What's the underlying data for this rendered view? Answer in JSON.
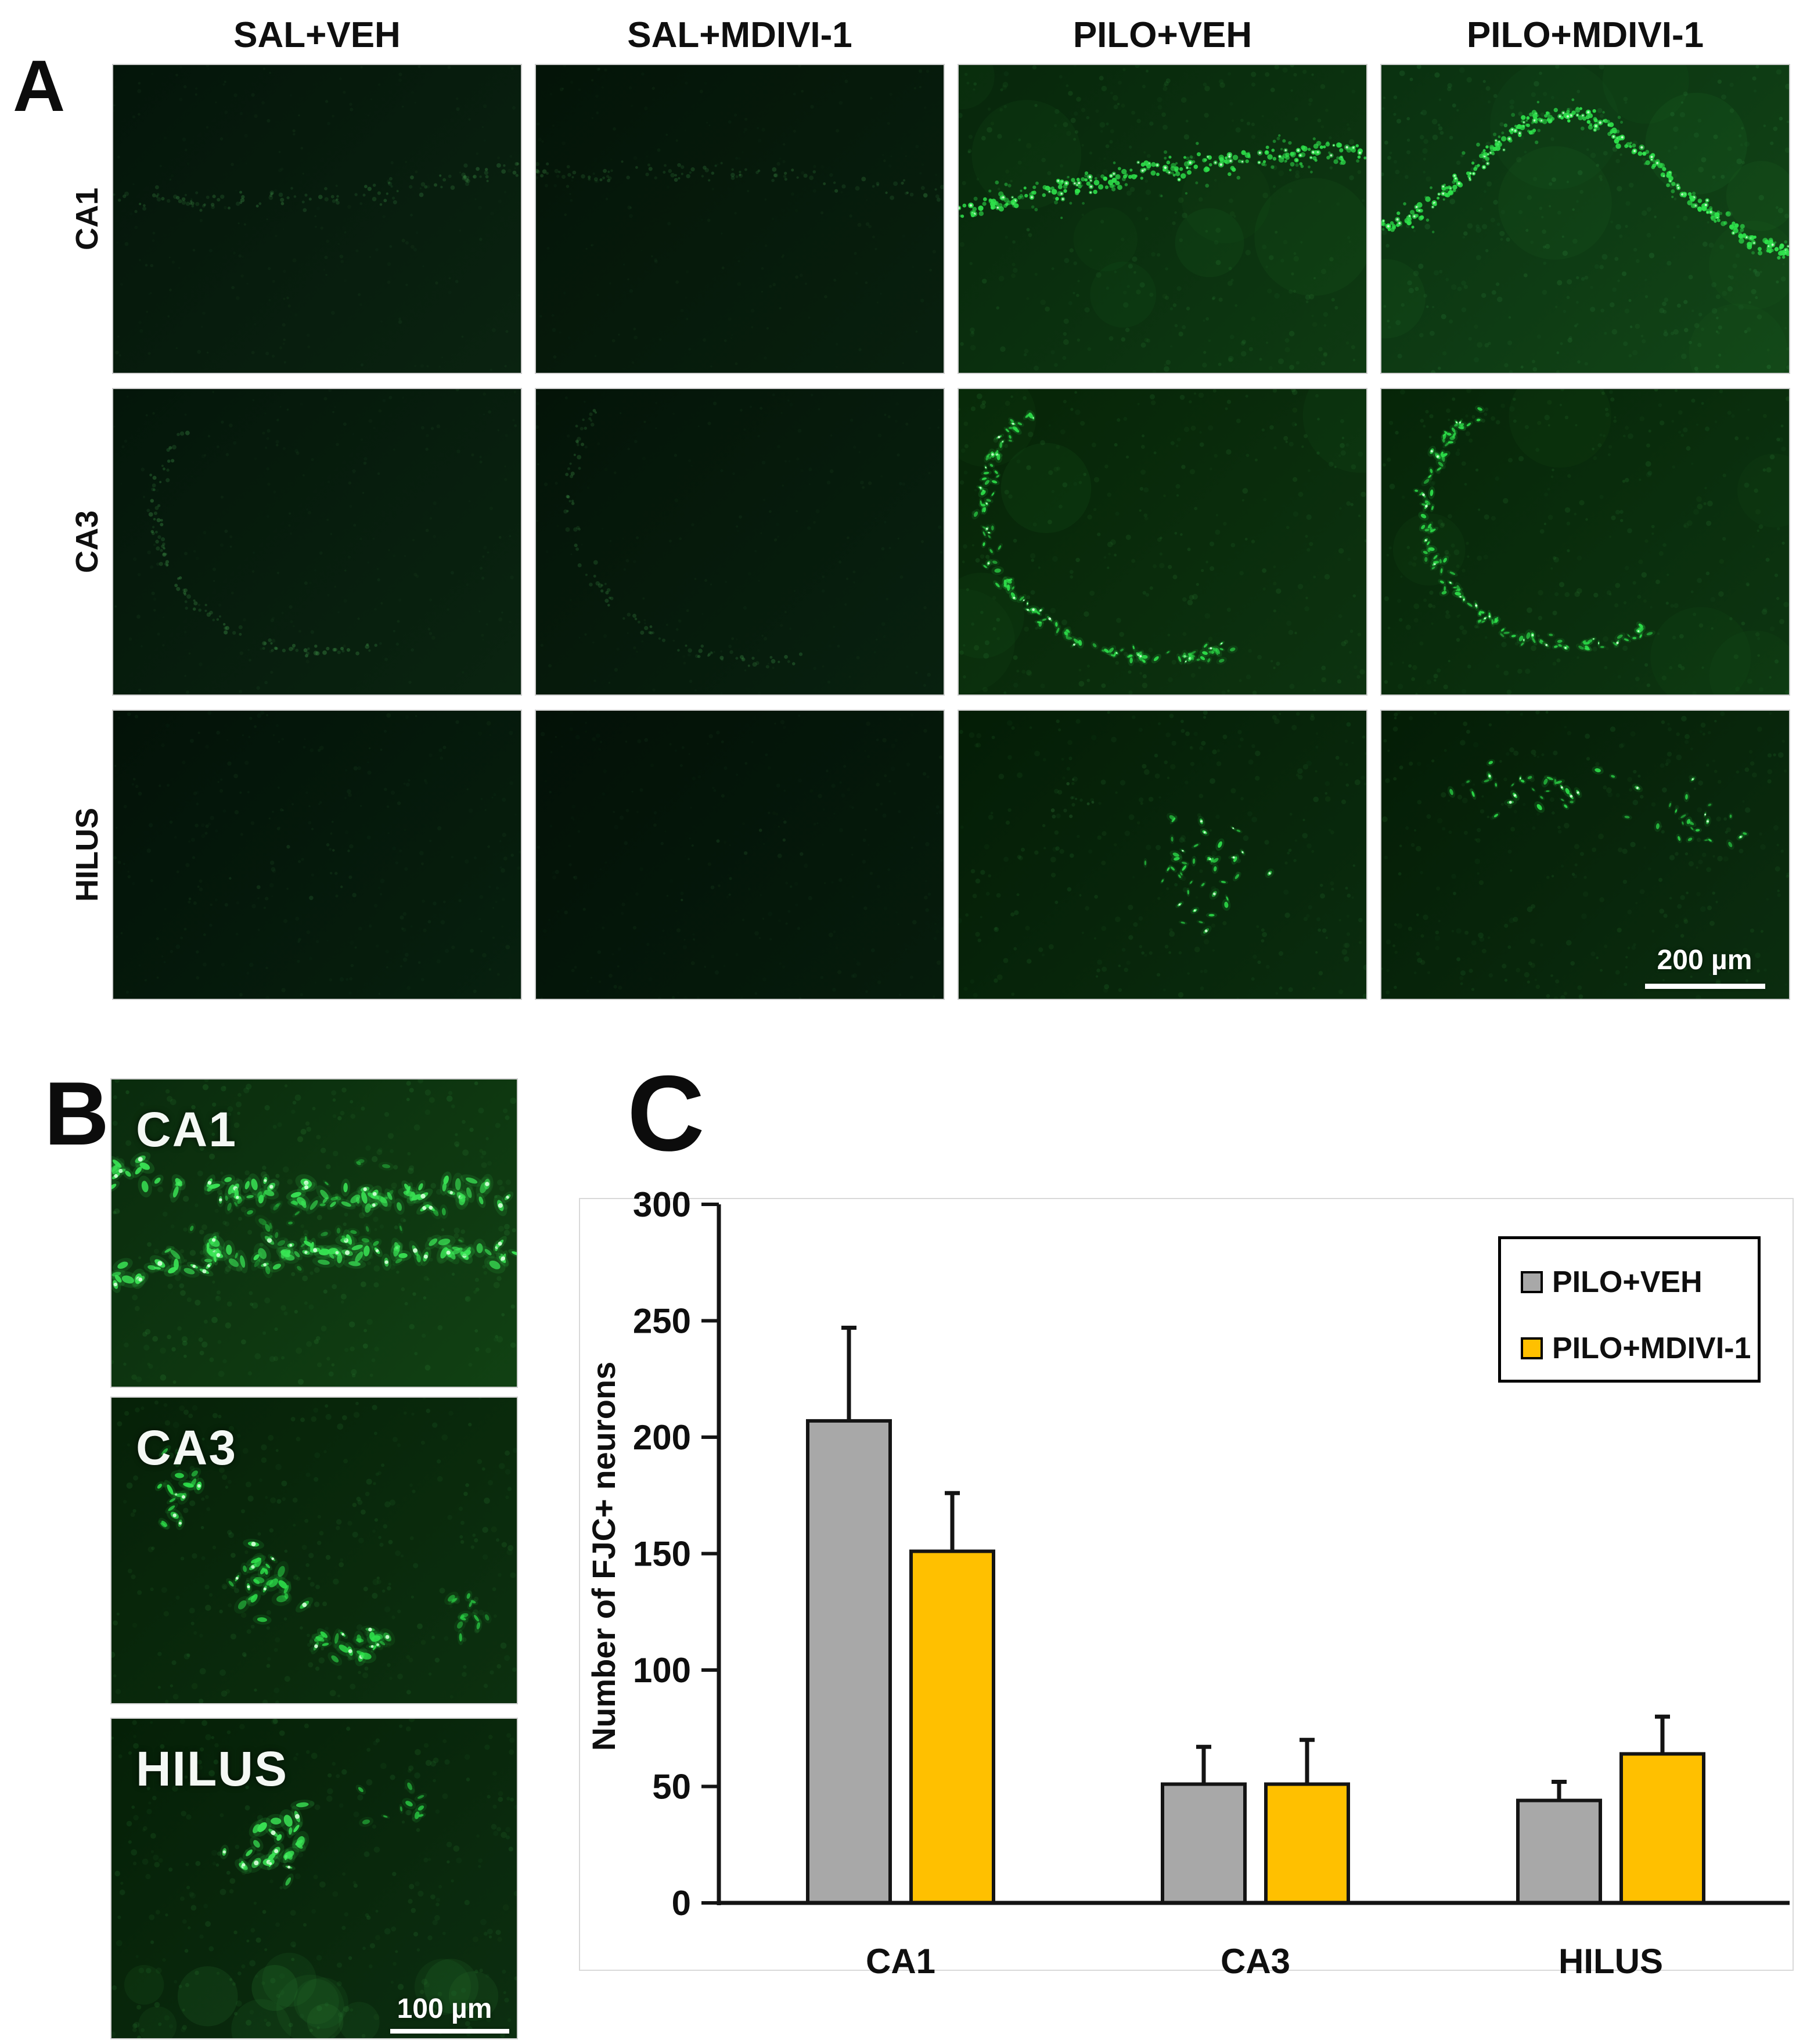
{
  "panelA": {
    "label": "A",
    "column_headers": [
      "SAL+VEH",
      "SAL+MDIVI-1",
      "PILO+VEH",
      "PILO+MDIVI-1"
    ],
    "row_labels": [
      "CA1",
      "CA3",
      "HILUS"
    ],
    "scale_bar_label": "200 µm",
    "cells": [
      {
        "row": "CA1",
        "col": "SAL+VEH",
        "appearance": "ca1-dim",
        "seed": 11
      },
      {
        "row": "CA1",
        "col": "SAL+MDIVI-1",
        "appearance": "ca1-dim2",
        "seed": 12
      },
      {
        "row": "CA1",
        "col": "PILO+VEH",
        "appearance": "ca1-bright",
        "seed": 13
      },
      {
        "row": "CA1",
        "col": "PILO+MDIVI-1",
        "appearance": "ca1-arch",
        "seed": 14
      },
      {
        "row": "CA3",
        "col": "SAL+VEH",
        "appearance": "ca3-dim",
        "seed": 21
      },
      {
        "row": "CA3",
        "col": "SAL+MDIVI-1",
        "appearance": "ca3-dim2",
        "seed": 22
      },
      {
        "row": "CA3",
        "col": "PILO+VEH",
        "appearance": "ca3-bright",
        "seed": 23
      },
      {
        "row": "CA3",
        "col": "PILO+MDIVI-1",
        "appearance": "ca3-bright2",
        "seed": 24
      },
      {
        "row": "HILUS",
        "col": "SAL+VEH",
        "appearance": "hilus-dim",
        "seed": 31
      },
      {
        "row": "HILUS",
        "col": "SAL+MDIVI-1",
        "appearance": "hilus-dim2",
        "seed": 32
      },
      {
        "row": "HILUS",
        "col": "PILO+VEH",
        "appearance": "hilus-cells",
        "seed": 33
      },
      {
        "row": "HILUS",
        "col": "PILO+MDIVI-1",
        "appearance": "hilus-cells-top",
        "seed": 34
      }
    ]
  },
  "panelB": {
    "label": "B",
    "scale_bar_label": "100 µm",
    "images": [
      {
        "label": "CA1",
        "appearance": "b-ca1",
        "seed": 41
      },
      {
        "label": "CA3",
        "appearance": "b-ca3",
        "seed": 42
      },
      {
        "label": "HILUS",
        "appearance": "b-hilus",
        "seed": 43
      }
    ]
  },
  "panelC": {
    "label": "C",
    "legend": [
      {
        "label": "PILO+VEH",
        "color": "#A8A8A8"
      },
      {
        "label": "PILO+MDIVI-1",
        "color": "#FFC000"
      }
    ]
  },
  "chart_data": {
    "type": "bar",
    "categories": [
      "CA1",
      "CA3",
      "HILUS"
    ],
    "series": [
      {
        "name": "PILO+VEH",
        "color": "#A8A8A8",
        "values": [
          207,
          51,
          44
        ],
        "errors": [
          40,
          16,
          8
        ]
      },
      {
        "name": "PILO+MDIVI-1",
        "color": "#FFC000",
        "values": [
          151,
          51,
          64
        ],
        "errors": [
          25,
          19,
          16
        ]
      }
    ],
    "ylabel": "Number of FJC+ neurons",
    "ylim": [
      0,
      300
    ],
    "ytick_step": 50,
    "legend_position": "top-right",
    "grid": false,
    "error_bars": "upper"
  }
}
